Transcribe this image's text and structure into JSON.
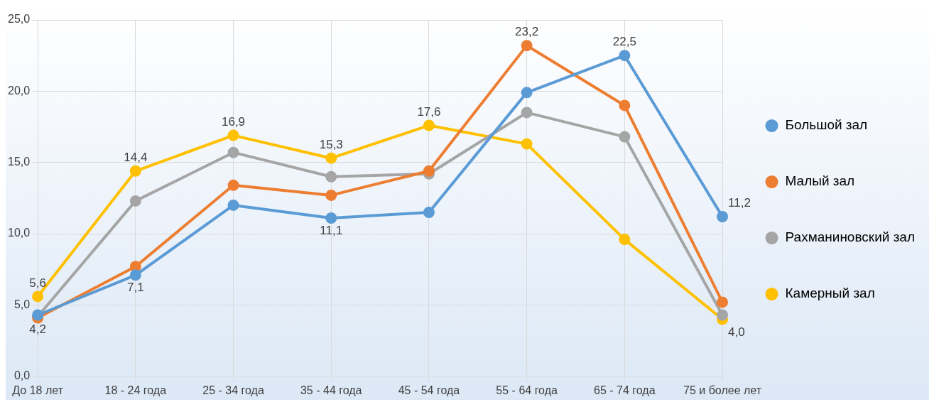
{
  "chart_data": {
    "type": "line",
    "categories": [
      "До 18 лет",
      "18 - 24 года",
      "25 - 34 года",
      "35 - 44 года",
      "45 - 54 года",
      "55 - 64 года",
      "65 - 74 года",
      "75 и более лет"
    ],
    "series": [
      {
        "name": "Большой зал",
        "color": "#5b9bd5",
        "values": [
          4.3,
          7.1,
          12.0,
          11.1,
          11.5,
          19.9,
          22.5,
          11.2
        ],
        "value_labels": [
          null,
          "7,1",
          null,
          "11,1",
          null,
          null,
          "22,5",
          "11,2"
        ]
      },
      {
        "name": "Малый зал",
        "color": "#ed7d31",
        "values": [
          4.1,
          7.7,
          13.4,
          12.7,
          14.4,
          23.2,
          19.0,
          5.2
        ],
        "value_labels": [
          null,
          null,
          null,
          null,
          null,
          "23,2",
          null,
          null
        ]
      },
      {
        "name": "Рахманиновский зал",
        "color": "#a5a5a5",
        "values": [
          4.2,
          12.3,
          15.7,
          14.0,
          14.2,
          18.5,
          16.8,
          4.3
        ],
        "value_labels": [
          "4,2",
          null,
          null,
          null,
          null,
          null,
          null,
          null
        ]
      },
      {
        "name": "Камерный зал",
        "color": "#ffc000",
        "values": [
          5.6,
          14.4,
          16.9,
          15.3,
          17.6,
          16.3,
          9.6,
          4.0
        ],
        "value_labels": [
          "5,6",
          "14,4",
          "16,9",
          "15,3",
          "17,6",
          null,
          null,
          "4,0"
        ]
      }
    ],
    "ylim": [
      0,
      25
    ],
    "yticks": [
      {
        "value": 0,
        "label": "0,0"
      },
      {
        "value": 5,
        "label": "5,0"
      },
      {
        "value": 10,
        "label": "10,0"
      },
      {
        "value": 15,
        "label": "15,0"
      },
      {
        "value": 20,
        "label": "20,0"
      },
      {
        "value": 25,
        "label": "25,0"
      }
    ],
    "grid": true,
    "legend": "right",
    "marker": "circle",
    "line_style": "solid"
  }
}
